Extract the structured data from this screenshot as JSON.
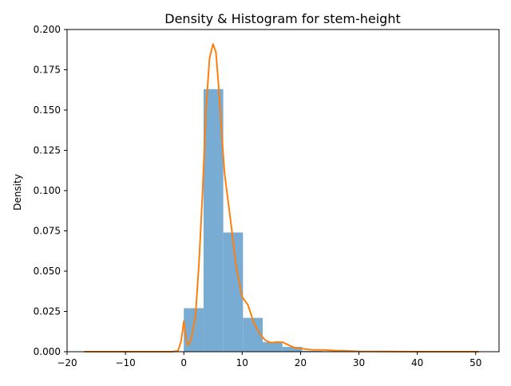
{
  "chart_data": {
    "type": "bar",
    "title": "Density & Histogram for stem-height",
    "xlabel": "",
    "ylabel": "Density",
    "xlim": [
      -20,
      54
    ],
    "ylim": [
      0,
      0.2
    ],
    "grid": false,
    "x_ticks": [
      -20,
      -10,
      0,
      10,
      20,
      30,
      40,
      50
    ],
    "x_tick_labels": [
      "−20",
      "−10",
      "0",
      "10",
      "20",
      "30",
      "40",
      "50"
    ],
    "y_ticks": [
      0,
      0.025,
      0.05,
      0.075,
      0.1,
      0.125,
      0.15,
      0.175,
      0.2
    ],
    "y_tick_labels": [
      "0.000",
      "0.025",
      "0.050",
      "0.075",
      "0.100",
      "0.125",
      "0.150",
      "0.175",
      "0.200"
    ],
    "colors": {
      "histogram": "#78acd2",
      "density": "#ff7f0e",
      "axes": "#000000"
    },
    "series": [
      {
        "type": "histogram",
        "bin_edges": [
          0,
          3.38,
          6.76,
          10.14,
          13.52,
          16.9,
          20.28,
          23.66,
          27.04,
          30.42,
          33.8,
          37.18,
          40.56,
          43.94,
          47.32,
          50.7
        ],
        "values": [
          0.027,
          0.163,
          0.074,
          0.021,
          0.006,
          0.003,
          0.0005,
          0.0003,
          0.0001,
          5e-05,
          3e-05,
          2e-05,
          1e-05,
          1e-05,
          1e-05
        ]
      },
      {
        "type": "line",
        "x": [
          -17,
          -10,
          -5,
          -2,
          -1,
          -0.5,
          -0.2,
          0,
          0.3,
          0.7,
          1.2,
          2,
          2.6,
          3.2,
          3.8,
          4.4,
          5,
          5.5,
          6,
          6.5,
          7,
          7.5,
          8,
          9,
          10,
          11,
          12,
          13,
          14,
          15,
          16,
          17,
          18,
          19,
          20,
          22,
          24,
          26,
          28,
          30,
          35,
          40,
          45,
          50.5
        ],
        "y": [
          0,
          0,
          0,
          0,
          0.0005,
          0.006,
          0.013,
          0.019,
          0.01,
          0.004,
          0.007,
          0.022,
          0.055,
          0.098,
          0.15,
          0.182,
          0.191,
          0.186,
          0.163,
          0.135,
          0.11,
          0.096,
          0.082,
          0.052,
          0.034,
          0.029,
          0.018,
          0.011,
          0.007,
          0.0055,
          0.006,
          0.0058,
          0.004,
          0.0025,
          0.002,
          0.0012,
          0.0011,
          0.0007,
          0.0005,
          0.0002,
          0.0001,
          0,
          0,
          0
        ]
      }
    ]
  }
}
